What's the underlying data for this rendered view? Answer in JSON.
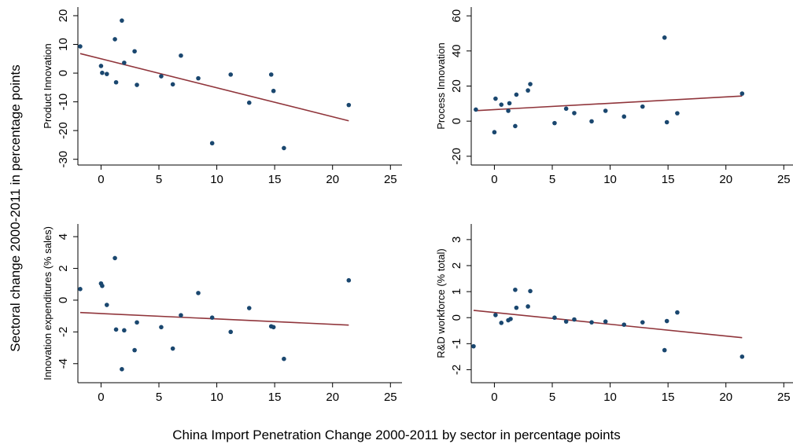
{
  "figure": {
    "ylabel": "Sectoral change 2000-2011 in percentage points",
    "xlabel": "China Import Penetration Change 2000-2011 by sector in percentage points"
  },
  "colors": {
    "point": "#1a476f",
    "fit_line": "#90353b",
    "axis": "#000000"
  },
  "chart_data": [
    {
      "type": "scatter",
      "ylabel": "Product Innovation",
      "xlim": [
        -2,
        26
      ],
      "ylim": [
        -32,
        23
      ],
      "xticks": [
        0,
        5,
        10,
        15,
        20,
        25
      ],
      "yticks": [
        -30,
        -20,
        -10,
        0,
        10,
        20
      ],
      "points": [
        [
          -1.8,
          9.3
        ],
        [
          0,
          2.5
        ],
        [
          0.1,
          0.1
        ],
        [
          0.5,
          -0.3
        ],
        [
          1.2,
          11.8
        ],
        [
          1.3,
          -3.2
        ],
        [
          1.8,
          18.3
        ],
        [
          2,
          3.6
        ],
        [
          2.9,
          7.6
        ],
        [
          3.1,
          -4.1
        ],
        [
          5.2,
          -1.1
        ],
        [
          6.2,
          -3.9
        ],
        [
          6.9,
          6.1
        ],
        [
          8.4,
          -1.8
        ],
        [
          9.6,
          -24.4
        ],
        [
          11.2,
          -0.5
        ],
        [
          12.8,
          -10.3
        ],
        [
          14.7,
          -0.5
        ],
        [
          14.9,
          -6.2
        ],
        [
          15.8,
          -26.1
        ],
        [
          21.4,
          -11.1
        ]
      ],
      "fit": [
        [
          -1.8,
          6.8
        ],
        [
          21.4,
          -16.6
        ]
      ]
    },
    {
      "type": "scatter",
      "ylabel": "Process Innovation",
      "xlim": [
        -2,
        26
      ],
      "ylim": [
        -25,
        65
      ],
      "xticks": [
        0,
        5,
        10,
        15,
        20,
        25
      ],
      "yticks": [
        -20,
        0,
        20,
        40,
        60
      ],
      "points": [
        [
          -1.6,
          6.6
        ],
        [
          0,
          -6.3
        ],
        [
          0.1,
          12.8
        ],
        [
          0.6,
          9.4
        ],
        [
          1.2,
          5.9
        ],
        [
          1.3,
          10.2
        ],
        [
          1.8,
          -2.8
        ],
        [
          1.9,
          15.1
        ],
        [
          2.9,
          17.5
        ],
        [
          3.1,
          21.1
        ],
        [
          5.2,
          -1.1
        ],
        [
          6.2,
          7.1
        ],
        [
          6.9,
          4.6
        ],
        [
          8.4,
          -0.1
        ],
        [
          9.6,
          5.9
        ],
        [
          11.2,
          2.6
        ],
        [
          12.8,
          8.3
        ],
        [
          14.7,
          47.6
        ],
        [
          14.9,
          -0.6
        ],
        [
          15.8,
          4.5
        ],
        [
          21.4,
          15.7
        ]
      ],
      "fit": [
        [
          -1.6,
          6.0
        ],
        [
          21.4,
          14.3
        ]
      ]
    },
    {
      "type": "scatter",
      "ylabel": "Innovation expenditures (% sales)",
      "xlim": [
        -2,
        26
      ],
      "ylim": [
        -5.2,
        4.8
      ],
      "xticks": [
        0,
        5,
        10,
        15,
        20,
        25
      ],
      "yticks": [
        -4,
        -2,
        0,
        2,
        4
      ],
      "points": [
        [
          -1.8,
          0.7
        ],
        [
          0,
          1.05
        ],
        [
          0.1,
          0.9
        ],
        [
          0.5,
          -0.3
        ],
        [
          1.2,
          2.65
        ],
        [
          1.3,
          -1.85
        ],
        [
          1.8,
          -4.35
        ],
        [
          2,
          -1.9
        ],
        [
          2.9,
          -3.15
        ],
        [
          3.1,
          -1.4
        ],
        [
          5.2,
          -1.7
        ],
        [
          6.2,
          -3.05
        ],
        [
          6.9,
          -0.95
        ],
        [
          8.4,
          0.45
        ],
        [
          9.6,
          -1.1
        ],
        [
          11.2,
          -2.0
        ],
        [
          12.8,
          -0.5
        ],
        [
          14.7,
          -1.65
        ],
        [
          14.9,
          -1.7
        ],
        [
          15.8,
          -3.7
        ],
        [
          21.4,
          1.25
        ]
      ],
      "fit": [
        [
          -1.8,
          -0.78
        ],
        [
          21.4,
          -1.57
        ]
      ]
    },
    {
      "type": "scatter",
      "ylabel": "R&D workforce (% total)",
      "xlim": [
        -2,
        26
      ],
      "ylim": [
        -2.5,
        3.6
      ],
      "xticks": [
        0,
        5,
        10,
        15,
        20,
        25
      ],
      "yticks": [
        -2,
        -1,
        0,
        1,
        2,
        3
      ],
      "points": [
        [
          -1.8,
          -1.1
        ],
        [
          0.1,
          0.1
        ],
        [
          0.6,
          -0.2
        ],
        [
          1.2,
          -0.1
        ],
        [
          1.4,
          -0.05
        ],
        [
          1.8,
          1.07
        ],
        [
          1.9,
          0.38
        ],
        [
          2.9,
          0.43
        ],
        [
          3.1,
          1.02
        ],
        [
          5.2,
          0.0
        ],
        [
          6.2,
          -0.15
        ],
        [
          6.9,
          -0.07
        ],
        [
          8.4,
          -0.18
        ],
        [
          9.6,
          -0.15
        ],
        [
          11.2,
          -0.27
        ],
        [
          12.8,
          -0.18
        ],
        [
          14.7,
          -1.25
        ],
        [
          14.9,
          -0.13
        ],
        [
          15.8,
          0.2
        ],
        [
          21.4,
          -1.5
        ]
      ],
      "fit": [
        [
          -1.8,
          0.28
        ],
        [
          21.4,
          -0.77
        ]
      ]
    }
  ]
}
